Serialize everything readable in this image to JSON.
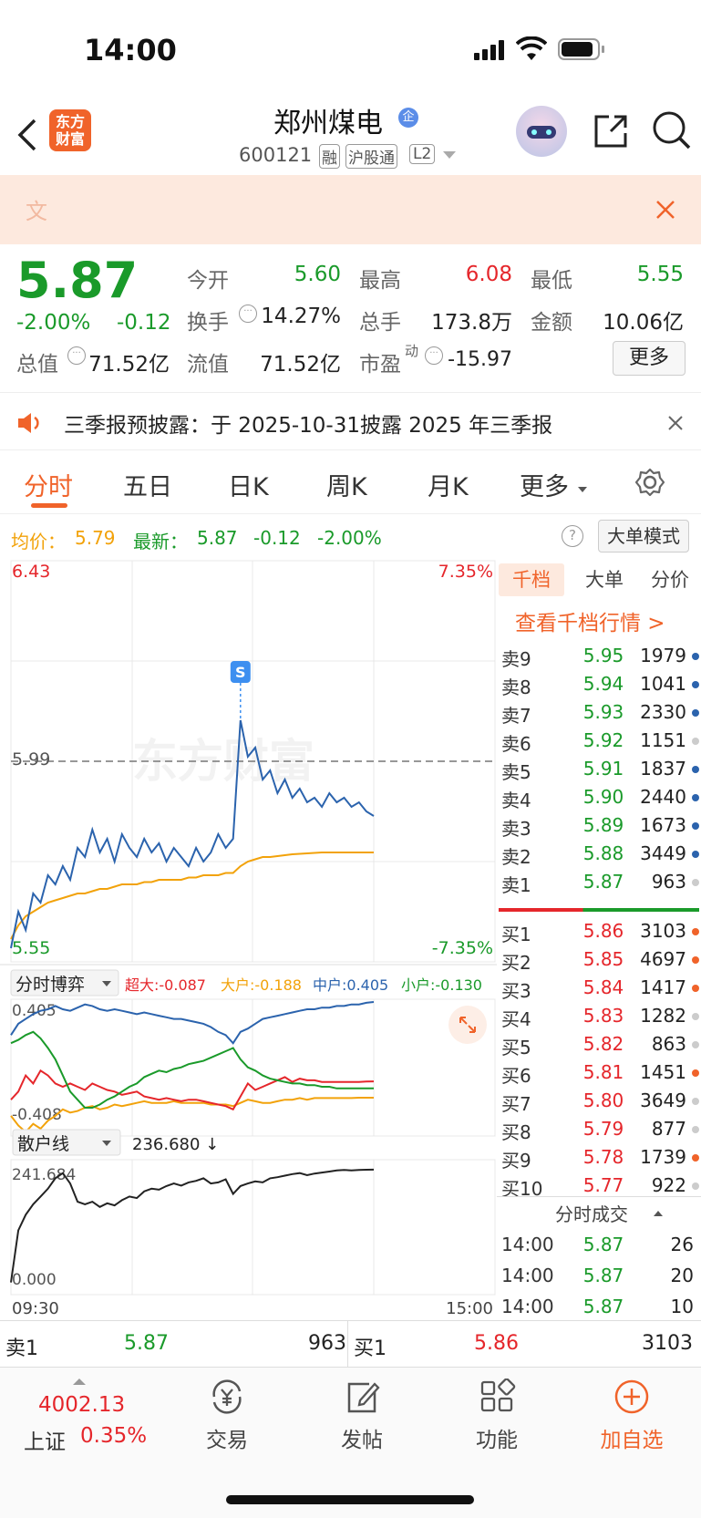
{
  "status_bar": {
    "time": "14:00"
  },
  "header": {
    "back_icon": "chevron-left-icon",
    "logo_text_line1": "东方",
    "logo_text_line2": "财富",
    "stock_name": "郑州煤电",
    "badge_qi": "企",
    "stock_code": "600121",
    "tags": [
      "融",
      "沪股通",
      "L2"
    ]
  },
  "banner": {
    "text": "文"
  },
  "quote": {
    "price": "5.87",
    "change_pct": "-2.00%",
    "change": "-0.12",
    "open_label": "今开",
    "open": "5.60",
    "high_label": "最高",
    "high": "6.08",
    "low_label": "最低",
    "low": "5.55",
    "turnover_label": "换手",
    "turnover": "14.27%",
    "volume_label": "总手",
    "volume": "173.8万",
    "amount_label": "金额",
    "amount": "10.06亿",
    "mcap_label": "总值",
    "mcap": "71.52亿",
    "float_label": "流值",
    "float": "71.52亿",
    "pe_label": "市盈",
    "pe_sup": "动",
    "pe": "-15.97",
    "more_button": "更多"
  },
  "notice": {
    "text": "三季报预披露：于 2025-10-31披露 2025 年三季报"
  },
  "tabs": [
    "分时",
    "五日",
    "日K",
    "周K",
    "月K",
    "更多"
  ],
  "avg_info": {
    "avg_label": "均价：",
    "avg": "5.79",
    "latest_label": "最新：",
    "latest": "5.87",
    "change": "-0.12",
    "change_pct": "-2.00%",
    "mode_button": "大单模式"
  },
  "chart_data": {
    "type": "line",
    "main": {
      "y_top": "6.43",
      "y_top_pct": "7.35%",
      "y_mid": "5.99",
      "y_bottom": "5.55",
      "y_bottom_pct": "-7.35%",
      "ylim": [
        5.55,
        6.43
      ],
      "marker_label": "S",
      "watermark": "东方财富",
      "x_start": "09:30",
      "x_end": "15:00",
      "price": [
        5.58,
        5.66,
        5.62,
        5.7,
        5.68,
        5.74,
        5.72,
        5.76,
        5.73,
        5.8,
        5.78,
        5.84,
        5.79,
        5.82,
        5.77,
        5.83,
        5.8,
        5.78,
        5.82,
        5.79,
        5.81,
        5.77,
        5.8,
        5.78,
        5.76,
        5.8,
        5.77,
        5.79,
        5.83,
        5.8,
        5.82,
        6.08,
        6.0,
        6.02,
        5.95,
        5.97,
        5.92,
        5.95,
        5.91,
        5.93,
        5.9,
        5.91,
        5.89,
        5.92,
        5.9,
        5.91,
        5.89,
        5.9,
        5.88,
        5.87
      ],
      "avg": [
        5.6,
        5.63,
        5.65,
        5.66,
        5.67,
        5.68,
        5.685,
        5.69,
        5.695,
        5.7,
        5.7,
        5.705,
        5.71,
        5.71,
        5.715,
        5.72,
        5.72,
        5.72,
        5.725,
        5.725,
        5.73,
        5.73,
        5.73,
        5.73,
        5.735,
        5.735,
        5.74,
        5.74,
        5.74,
        5.745,
        5.745,
        5.76,
        5.77,
        5.775,
        5.78,
        5.78,
        5.782,
        5.784,
        5.786,
        5.787,
        5.788,
        5.789,
        5.79,
        5.79,
        5.79,
        5.79,
        5.79,
        5.79,
        5.79,
        5.79
      ]
    },
    "game": {
      "title": "分时博弈",
      "legend": [
        {
          "name": "超大",
          "value": "-0.087",
          "color": "#e5262b"
        },
        {
          "name": "大户",
          "value": "-0.188",
          "color": "#f2a20a"
        },
        {
          "name": "中户",
          "value": "0.405",
          "color": "#2b63ad"
        },
        {
          "name": "小户",
          "value": "-0.130",
          "color": "#1a9a2a"
        }
      ],
      "y_top": "0.405",
      "y_bottom": "-0.408",
      "zhonghu": [
        0.2,
        0.27,
        0.3,
        0.33,
        0.35,
        0.36,
        0.38,
        0.36,
        0.35,
        0.37,
        0.39,
        0.38,
        0.36,
        0.35,
        0.36,
        0.35,
        0.34,
        0.33,
        0.34,
        0.33,
        0.32,
        0.31,
        0.3,
        0.3,
        0.29,
        0.28,
        0.27,
        0.25,
        0.22,
        0.2,
        0.15,
        0.22,
        0.24,
        0.27,
        0.3,
        0.31,
        0.32,
        0.33,
        0.34,
        0.35,
        0.36,
        0.36,
        0.37,
        0.37,
        0.38,
        0.38,
        0.39,
        0.39,
        0.4,
        0.405
      ],
      "xiaohu": [
        0.15,
        0.17,
        0.2,
        0.22,
        0.18,
        0.12,
        0.05,
        -0.05,
        -0.15,
        -0.2,
        -0.25,
        -0.25,
        -0.23,
        -0.2,
        -0.18,
        -0.15,
        -0.12,
        -0.1,
        -0.06,
        -0.04,
        -0.02,
        -0.03,
        -0.01,
        0.0,
        0.02,
        0.03,
        0.04,
        0.06,
        0.08,
        0.1,
        0.12,
        0.05,
        0.0,
        -0.02,
        -0.05,
        -0.07,
        -0.08,
        -0.09,
        -0.1,
        -0.1,
        -0.11,
        -0.11,
        -0.12,
        -0.12,
        -0.13,
        -0.13,
        -0.13,
        -0.13,
        -0.13,
        -0.13
      ],
      "chaoda": [
        -0.2,
        -0.15,
        -0.05,
        -0.1,
        -0.02,
        -0.05,
        -0.1,
        -0.12,
        -0.1,
        -0.12,
        -0.14,
        -0.1,
        -0.12,
        -0.14,
        -0.15,
        -0.17,
        -0.16,
        -0.15,
        -0.18,
        -0.19,
        -0.2,
        -0.19,
        -0.2,
        -0.21,
        -0.2,
        -0.2,
        -0.21,
        -0.22,
        -0.23,
        -0.24,
        -0.26,
        -0.18,
        -0.1,
        -0.14,
        -0.12,
        -0.1,
        -0.08,
        -0.06,
        -0.09,
        -0.07,
        -0.08,
        -0.08,
        -0.09,
        -0.09,
        -0.09,
        -0.09,
        -0.09,
        -0.09,
        -0.088,
        -0.087
      ],
      "dahu": [
        -0.3,
        -0.36,
        -0.4,
        -0.35,
        -0.38,
        -0.33,
        -0.3,
        -0.26,
        -0.28,
        -0.27,
        -0.25,
        -0.24,
        -0.26,
        -0.25,
        -0.23,
        -0.24,
        -0.23,
        -0.22,
        -0.21,
        -0.22,
        -0.22,
        -0.22,
        -0.21,
        -0.22,
        -0.22,
        -0.22,
        -0.22,
        -0.23,
        -0.23,
        -0.23,
        -0.24,
        -0.22,
        -0.2,
        -0.21,
        -0.22,
        -0.22,
        -0.21,
        -0.2,
        -0.2,
        -0.19,
        -0.2,
        -0.19,
        -0.19,
        -0.19,
        -0.19,
        -0.19,
        -0.19,
        -0.188,
        -0.188,
        -0.188
      ]
    },
    "retail": {
      "title": "散户线",
      "value": "236.680",
      "arrow": "↓",
      "y_top": "241.684",
      "y_bottom": "0.000",
      "ylim": [
        0,
        241.684
      ],
      "values": [
        20,
        120,
        150,
        170,
        185,
        200,
        220,
        230,
        210,
        175,
        170,
        175,
        165,
        172,
        168,
        178,
        185,
        182,
        195,
        200,
        198,
        205,
        210,
        206,
        212,
        215,
        220,
        210,
        212,
        218,
        190,
        205,
        210,
        214,
        212,
        220,
        222,
        225,
        228,
        230,
        226,
        229,
        231,
        233,
        235,
        236,
        235,
        236,
        236.5,
        236.68
      ]
    }
  },
  "orderbook": {
    "tabs": [
      "千档",
      "大单",
      "分价"
    ],
    "link": "查看千档行情 >",
    "asks": [
      {
        "label": "卖9",
        "price": "5.95",
        "vol": "1979",
        "dot": "#2b63ad"
      },
      {
        "label": "卖8",
        "price": "5.94",
        "vol": "1041",
        "dot": "#2b63ad"
      },
      {
        "label": "卖7",
        "price": "5.93",
        "vol": "2330",
        "dot": "#2b63ad"
      },
      {
        "label": "卖6",
        "price": "5.92",
        "vol": "1151",
        "dot": "#cccccc"
      },
      {
        "label": "卖5",
        "price": "5.91",
        "vol": "1837",
        "dot": "#2b63ad"
      },
      {
        "label": "卖4",
        "price": "5.90",
        "vol": "2440",
        "dot": "#2b63ad"
      },
      {
        "label": "卖3",
        "price": "5.89",
        "vol": "1673",
        "dot": "#2b63ad"
      },
      {
        "label": "卖2",
        "price": "5.88",
        "vol": "3449",
        "dot": "#2b63ad"
      },
      {
        "label": "卖1",
        "price": "5.87",
        "vol": "963",
        "dot": "#cccccc"
      }
    ],
    "bids": [
      {
        "label": "买1",
        "price": "5.86",
        "vol": "3103",
        "dot": "#f0632a"
      },
      {
        "label": "买2",
        "price": "5.85",
        "vol": "4697",
        "dot": "#f0632a"
      },
      {
        "label": "买3",
        "price": "5.84",
        "vol": "1417",
        "dot": "#f0632a"
      },
      {
        "label": "买4",
        "price": "5.83",
        "vol": "1282",
        "dot": "#cccccc"
      },
      {
        "label": "买5",
        "price": "5.82",
        "vol": "863",
        "dot": "#cccccc"
      },
      {
        "label": "买6",
        "price": "5.81",
        "vol": "1451",
        "dot": "#f0632a"
      },
      {
        "label": "买7",
        "price": "5.80",
        "vol": "3649",
        "dot": "#cccccc"
      },
      {
        "label": "买8",
        "price": "5.79",
        "vol": "877",
        "dot": "#cccccc"
      },
      {
        "label": "买9",
        "price": "5.78",
        "vol": "1739",
        "dot": "#f0632a"
      },
      {
        "label": "买10",
        "price": "5.77",
        "vol": "922",
        "dot": "#cccccc"
      }
    ],
    "trades_title": "分时成交",
    "trades": [
      {
        "time": "14:00",
        "price": "5.87",
        "vol": "26"
      },
      {
        "time": "14:00",
        "price": "5.87",
        "vol": "20"
      },
      {
        "time": "14:00",
        "price": "5.87",
        "vol": "10"
      }
    ]
  },
  "bottom_bar": {
    "sell_label": "卖1",
    "sell_price": "5.87",
    "sell_vol": "963",
    "buy_label": "买1",
    "buy_price": "5.86",
    "buy_vol": "3103"
  },
  "nav": {
    "index_value": "4002.13",
    "index_name": "上证",
    "index_pct": "0.35%",
    "items": [
      {
        "label": "交易",
        "icon": "trade-yen-icon"
      },
      {
        "label": "发帖",
        "icon": "edit-post-icon"
      },
      {
        "label": "功能",
        "icon": "grid-apps-icon"
      },
      {
        "label": "加自选",
        "icon": "add-circle-icon"
      }
    ]
  },
  "colors": {
    "up": "#e5262b",
    "down": "#1a9a2a",
    "accent": "#f0632a",
    "avg_line": "#f2a20a",
    "price_line": "#2b63ad"
  }
}
